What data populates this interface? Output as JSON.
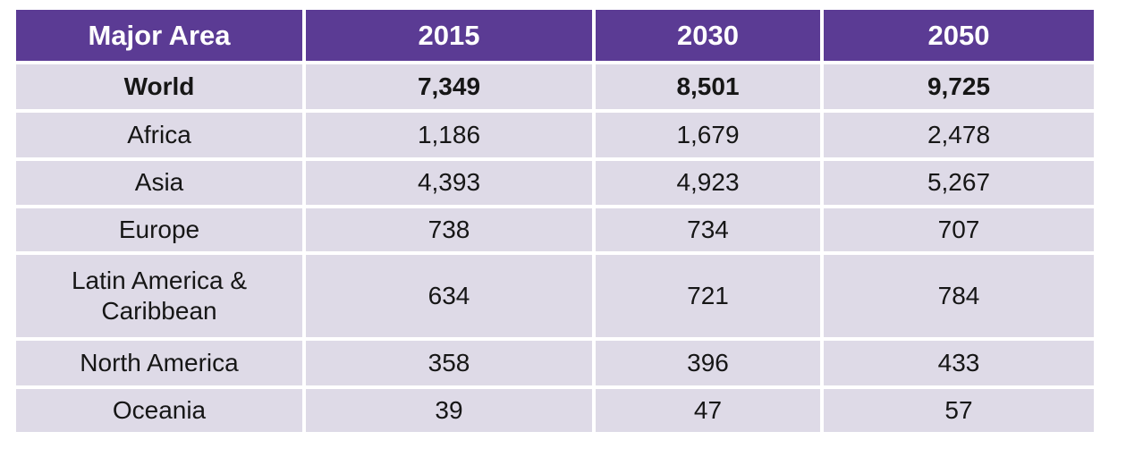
{
  "colors": {
    "header_bg": "#5B3B94",
    "header_text": "#FFFFFF",
    "row_bg": "#DEDAE7",
    "body_text": "#161616",
    "cell_gap": "#FFFFFF",
    "page_bg": "#FFFFFF"
  },
  "table": {
    "header": {
      "area": "Major Area",
      "y2015": "2015",
      "y2030": "2030",
      "y2050": "2050"
    },
    "rows": [
      {
        "area": "World",
        "v2015": "7,349",
        "v2030": "8,501",
        "v2050": "9,725"
      },
      {
        "area": "Africa",
        "v2015": "1,186",
        "v2030": "1,679",
        "v2050": "2,478"
      },
      {
        "area": "Asia",
        "v2015": "4,393",
        "v2030": "4,923",
        "v2050": "5,267"
      },
      {
        "area": "Europe",
        "v2015": "738",
        "v2030": "734",
        "v2050": "707"
      },
      {
        "area": "Latin America & Caribbean",
        "v2015": "634",
        "v2030": "721",
        "v2050": "784"
      },
      {
        "area": "North America",
        "v2015": "358",
        "v2030": "396",
        "v2050": "433"
      },
      {
        "area": "Oceania",
        "v2015": "39",
        "v2030": "47",
        "v2050": "57"
      }
    ]
  },
  "chart_data": {
    "type": "table",
    "title": "",
    "columns": [
      "Major Area",
      "2015",
      "2030",
      "2050"
    ],
    "rows": [
      [
        "World",
        7349,
        8501,
        9725
      ],
      [
        "Africa",
        1186,
        1679,
        2478
      ],
      [
        "Asia",
        4393,
        4923,
        5267
      ],
      [
        "Europe",
        738,
        734,
        707
      ],
      [
        "Latin America & Caribbean",
        634,
        721,
        784
      ],
      [
        "North America",
        358,
        396,
        433
      ],
      [
        "Oceania",
        39,
        47,
        57
      ]
    ]
  }
}
